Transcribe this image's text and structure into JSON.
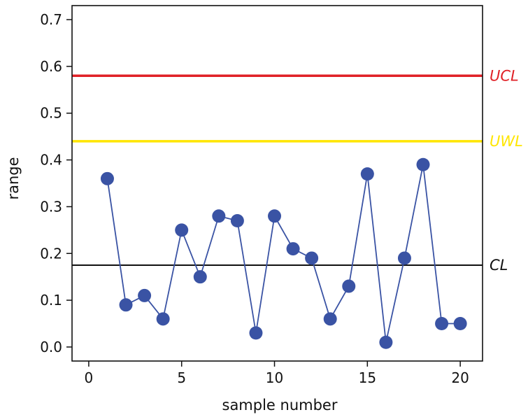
{
  "chart_data": {
    "type": "line",
    "title": "",
    "xlabel": "sample number",
    "ylabel": "range",
    "xlim": [
      -0.9,
      21.2
    ],
    "ylim": [
      -0.03,
      0.73
    ],
    "xticks": [
      0,
      5,
      10,
      15,
      20
    ],
    "xtick_labels": [
      "0",
      "5",
      "10",
      "15",
      "20"
    ],
    "yticks": [
      0.0,
      0.1,
      0.2,
      0.3,
      0.4,
      0.5,
      0.6,
      0.7
    ],
    "ytick_labels": [
      "0.0",
      "0.1",
      "0.2",
      "0.3",
      "0.4",
      "0.5",
      "0.6",
      "0.7"
    ],
    "grid": false,
    "series": [
      {
        "color": "#3a53a4",
        "x": [
          1,
          2,
          3,
          4,
          5,
          6,
          7,
          8,
          9,
          10,
          11,
          12,
          13,
          14,
          15,
          16,
          17,
          18,
          19,
          20
        ],
        "y": [
          0.36,
          0.09,
          0.11,
          0.06,
          0.25,
          0.15,
          0.28,
          0.27,
          0.03,
          0.28,
          0.21,
          0.19,
          0.06,
          0.13,
          0.37,
          0.01,
          0.19,
          0.39,
          0.05,
          0.05
        ]
      }
    ],
    "reference_lines": [
      {
        "label": "UCL",
        "y": 0.58,
        "color": "#e02127"
      },
      {
        "label": "UWL",
        "y": 0.44,
        "color": "#ffe600"
      },
      {
        "label": "CL",
        "y": 0.175,
        "color": "#111111"
      }
    ]
  }
}
